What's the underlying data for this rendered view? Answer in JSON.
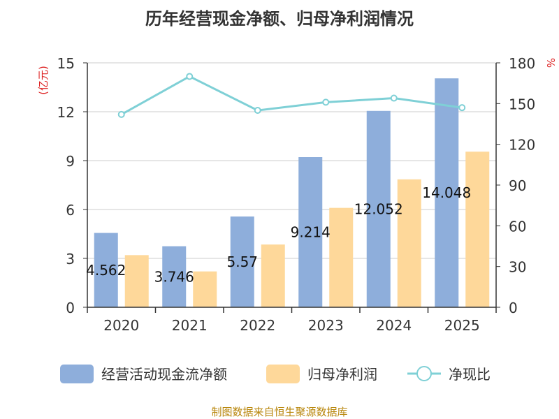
{
  "chart_data": {
    "type": "bar",
    "title": "历年经营现金净额、归母净利润情况",
    "categories": [
      "2020",
      "2021",
      "2022",
      "2023",
      "2024",
      "2025"
    ],
    "y_left": {
      "label": "(亿元)",
      "ticks": [
        "0",
        "3",
        "6",
        "9",
        "12",
        "15"
      ],
      "ylim": [
        0,
        15
      ]
    },
    "y_right": {
      "label": "%",
      "ticks": [
        "0",
        "30",
        "60",
        "90",
        "120",
        "150",
        "180"
      ],
      "ylim": [
        0,
        180
      ]
    },
    "series": [
      {
        "name": "经营活动现金流净额",
        "type": "bar",
        "axis": "left",
        "color": "#8eaedb",
        "values": [
          4.562,
          3.746,
          5.57,
          9.214,
          12.052,
          14.048
        ],
        "labels": [
          "4.562",
          "3.746",
          "5.57",
          "9.214",
          "12.052",
          "14.048"
        ]
      },
      {
        "name": "归母净利润",
        "type": "bar",
        "axis": "left",
        "color": "#fed89a",
        "values": [
          3.2,
          2.2,
          3.85,
          6.1,
          7.85,
          9.55
        ]
      },
      {
        "name": "净现比",
        "type": "line",
        "axis": "right",
        "color": "#7fd0d6",
        "values": [
          142,
          170,
          145,
          151,
          154,
          147
        ]
      }
    ],
    "grid": true,
    "legend_position": "bottom",
    "label_color": "#dd2222",
    "axis_color": "#333333"
  },
  "footer": {
    "source": "制图数据来自恒生聚源数据库",
    "color": "#b8860b"
  }
}
